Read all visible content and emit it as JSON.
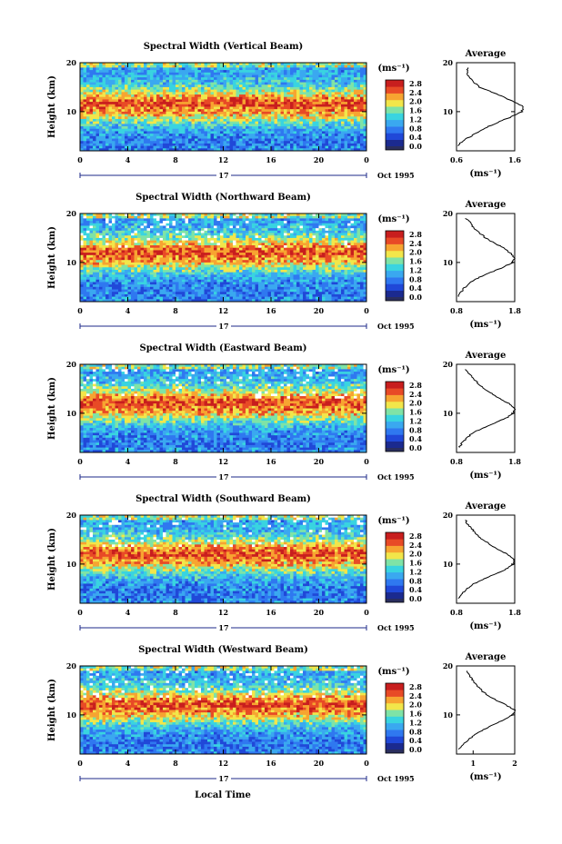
{
  "figure": {
    "bottom_xlabel": "Local Time",
    "date_label": "Oct 1995",
    "day_label": "17",
    "unit_label": "(ms⁻¹)",
    "colorbar_ticks": [
      "0.0",
      "0.4",
      "0.8",
      "1.2",
      "1.6",
      "2.0",
      "2.4",
      "2.8"
    ],
    "main_x_ticks": [
      "0",
      "4",
      "8",
      "12",
      "16",
      "20",
      "0"
    ],
    "main_y_ticks": [
      "10",
      "20"
    ],
    "main_ylabel": "Height (km)",
    "avg_y_ticks": [
      "10",
      "20"
    ],
    "avg_title": "Average",
    "colors": {
      "colormap": [
        "#1b2a8f",
        "#2048d8",
        "#2f78f0",
        "#3aa8f0",
        "#39d4e0",
        "#7fe3a6",
        "#f2e64a",
        "#f7a431",
        "#e84a26",
        "#c81e1e"
      ],
      "floor": "#2a2e5e"
    }
  },
  "chart_data": [
    {
      "type": "heatmap",
      "title": "Spectral Width (Vertical Beam)",
      "ylabel": "Height (km)",
      "xlim": [
        0,
        24
      ],
      "ylim": [
        2,
        20
      ],
      "colorbar_range": [
        0.0,
        3.0
      ],
      "profile_peak_height_km": 11,
      "avg_profile": {
        "type": "line",
        "title": "Average",
        "xticks": [
          "0.6",
          "1.6"
        ],
        "xlim": [
          0.6,
          1.6
        ],
        "xlabel": "(ms⁻¹)",
        "heights": [
          3,
          4,
          5,
          6,
          7,
          8,
          9,
          10,
          11,
          12,
          13,
          14,
          15,
          16,
          17,
          18,
          19
        ],
        "values": [
          0.62,
          0.7,
          0.85,
          1.0,
          1.15,
          1.35,
          1.55,
          1.72,
          1.75,
          1.6,
          1.4,
          1.2,
          1.0,
          0.9,
          0.82,
          0.78,
          0.8
        ]
      }
    },
    {
      "type": "heatmap",
      "title": "Spectral Width (Northward Beam)",
      "ylabel": "Height (km)",
      "xlim": [
        0,
        24
      ],
      "ylim": [
        2,
        20
      ],
      "colorbar_range": [
        0.0,
        3.0
      ],
      "profile_peak_height_km": 11.5,
      "avg_profile": {
        "type": "line",
        "title": "Average",
        "xticks": [
          "0.8",
          "1.8"
        ],
        "xlim": [
          0.8,
          1.8
        ],
        "xlabel": "(ms⁻¹)",
        "heights": [
          3,
          4,
          5,
          6,
          7,
          8,
          9,
          10,
          11,
          12,
          13,
          14,
          15,
          16,
          17,
          18,
          19
        ],
        "values": [
          0.82,
          0.88,
          0.95,
          1.05,
          1.2,
          1.4,
          1.6,
          1.76,
          1.8,
          1.72,
          1.6,
          1.45,
          1.3,
          1.2,
          1.1,
          1.05,
          0.95
        ]
      }
    },
    {
      "type": "heatmap",
      "title": "Spectral Width (Eastward Beam)",
      "ylabel": "Height (km)",
      "xlim": [
        0,
        24
      ],
      "ylim": [
        2,
        20
      ],
      "colorbar_range": [
        0.0,
        3.0
      ],
      "profile_peak_height_km": 11.5,
      "avg_profile": {
        "type": "line",
        "title": "Average",
        "xticks": [
          "0.8",
          "1.8"
        ],
        "xlim": [
          0.8,
          1.8
        ],
        "xlabel": "(ms⁻¹)",
        "heights": [
          3,
          4,
          5,
          6,
          7,
          8,
          9,
          10,
          11,
          12,
          13,
          14,
          15,
          16,
          17,
          18,
          19
        ],
        "values": [
          0.84,
          0.9,
          0.98,
          1.08,
          1.25,
          1.45,
          1.65,
          1.78,
          1.8,
          1.7,
          1.55,
          1.4,
          1.28,
          1.18,
          1.1,
          1.02,
          0.95
        ]
      }
    },
    {
      "type": "heatmap",
      "title": "Spectral Width (Southward Beam)",
      "ylabel": "Height (km)",
      "xlim": [
        0,
        24
      ],
      "ylim": [
        2,
        20
      ],
      "colorbar_range": [
        0.0,
        3.0
      ],
      "profile_peak_height_km": 11.5,
      "avg_profile": {
        "type": "line",
        "title": "Average",
        "xticks": [
          "0.8",
          "1.8"
        ],
        "xlim": [
          0.8,
          1.8
        ],
        "xlabel": "(ms⁻¹)",
        "heights": [
          3,
          4,
          5,
          6,
          7,
          8,
          9,
          10,
          11,
          12,
          13,
          14,
          15,
          16,
          17,
          18,
          19
        ],
        "values": [
          0.84,
          0.9,
          0.98,
          1.1,
          1.28,
          1.48,
          1.66,
          1.78,
          1.8,
          1.68,
          1.52,
          1.38,
          1.25,
          1.15,
          1.08,
          1.0,
          0.95
        ]
      }
    },
    {
      "type": "heatmap",
      "title": "Spectral Width (Westward Beam)",
      "ylabel": "Height (km)",
      "xlim": [
        0,
        24
      ],
      "ylim": [
        2,
        20
      ],
      "colorbar_range": [
        0.0,
        3.0
      ],
      "profile_peak_height_km": 11.5,
      "avg_profile": {
        "type": "line",
        "title": "Average",
        "xticks": [
          "1",
          "2"
        ],
        "xlim": [
          0.6,
          2.0
        ],
        "xlabel": "(ms⁻¹)",
        "heights": [
          3,
          4,
          5,
          6,
          7,
          8,
          9,
          10,
          11,
          12,
          13,
          14,
          15,
          16,
          17,
          18,
          19
        ],
        "values": [
          0.65,
          0.75,
          0.9,
          1.05,
          1.25,
          1.5,
          1.75,
          1.95,
          2.0,
          1.8,
          1.55,
          1.35,
          1.2,
          1.1,
          1.0,
          0.92,
          0.85
        ]
      }
    }
  ]
}
